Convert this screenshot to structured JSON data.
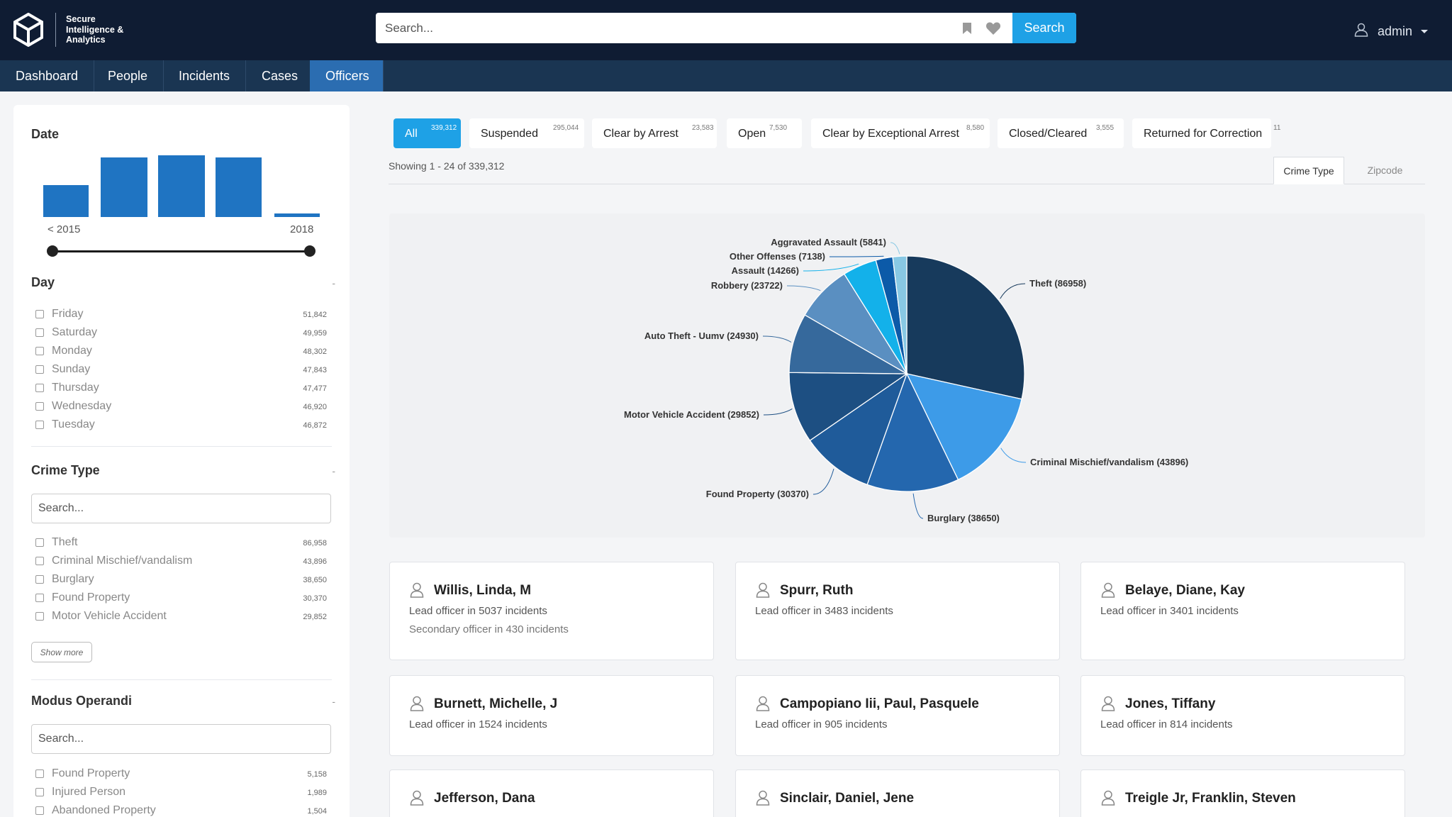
{
  "app": {
    "logo_text": [
      "Secure",
      "Intelligence &",
      "Analytics"
    ],
    "search_placeholder": "Search...",
    "search_button": "Search",
    "user": "admin"
  },
  "nav": {
    "items": [
      "Dashboard",
      "People",
      "Incidents",
      "Cases",
      "Officers"
    ],
    "active": "Officers"
  },
  "sidebar": {
    "date": {
      "title": "Date",
      "histogram_relative_heights": [
        0.52,
        0.96,
        1.0,
        0.96,
        0.06
      ],
      "label_start": "< 2015",
      "label_end": "2018"
    },
    "day": {
      "title": "Day",
      "collapse": "-",
      "items": [
        {
          "label": "Friday",
          "count": "51,842"
        },
        {
          "label": "Saturday",
          "count": "49,959"
        },
        {
          "label": "Monday",
          "count": "48,302"
        },
        {
          "label": "Sunday",
          "count": "47,843"
        },
        {
          "label": "Thursday",
          "count": "47,477"
        },
        {
          "label": "Wednesday",
          "count": "46,920"
        },
        {
          "label": "Tuesday",
          "count": "46,872"
        }
      ]
    },
    "crime_type": {
      "title": "Crime Type",
      "collapse": "-",
      "search_placeholder": "Search...",
      "items": [
        {
          "label": "Theft",
          "count": "86,958"
        },
        {
          "label": "Criminal Mischief/vandalism",
          "count": "43,896"
        },
        {
          "label": "Burglary",
          "count": "38,650"
        },
        {
          "label": "Found Property",
          "count": "30,370"
        },
        {
          "label": "Motor Vehicle Accident",
          "count": "29,852"
        }
      ],
      "show_more": "Show more"
    },
    "modus_operandi": {
      "title": "Modus Operandi",
      "collapse": "-",
      "search_placeholder": "Search...",
      "items": [
        {
          "label": "Found Property",
          "count": "5,158"
        },
        {
          "label": "Injured Person",
          "count": "1,989"
        },
        {
          "label": "Abandoned Property",
          "count": "1,504"
        }
      ]
    }
  },
  "status_filters": [
    {
      "label": "All",
      "count": "339,312",
      "active": true
    },
    {
      "label": "Suspended",
      "count": "295,044",
      "active": false
    },
    {
      "label": "Clear by Arrest",
      "count": "23,583",
      "active": false
    },
    {
      "label": "Open",
      "count": "7,530",
      "active": false
    },
    {
      "label": "Clear by Exceptional Arrest",
      "count": "8,580",
      "active": false
    },
    {
      "label": "Closed/Cleared",
      "count": "3,555",
      "active": false
    },
    {
      "label": "Returned for Correction",
      "count": "11",
      "active": false
    }
  ],
  "results": {
    "showing": "Showing 1 - 24 of 339,312"
  },
  "view_tabs": [
    {
      "label": "Crime Type",
      "active": true
    },
    {
      "label": "Zipcode",
      "active": false
    }
  ],
  "chart_data": {
    "type": "pie",
    "slices": [
      {
        "label": "Theft",
        "value": 86958,
        "color": "#173a5c"
      },
      {
        "label": "Criminal Mischief/vandalism",
        "value": 43896,
        "color": "#3d9be8"
      },
      {
        "label": "Burglary",
        "value": 38650,
        "color": "#2467ae"
      },
      {
        "label": "Found Property",
        "value": 30370,
        "color": "#1f5b9a"
      },
      {
        "label": "Motor Vehicle Accident",
        "value": 29852,
        "color": "#1d4f82"
      },
      {
        "label": "Auto Theft - Uumv",
        "value": 24930,
        "color": "#36699c"
      },
      {
        "label": "Robbery",
        "value": 23722,
        "color": "#5a8fc1"
      },
      {
        "label": "Assault",
        "value": 14266,
        "color": "#13b1ea"
      },
      {
        "label": "Other Offenses",
        "value": 7138,
        "color": "#0c5aa8"
      },
      {
        "label": "Aggravated Assault",
        "value": 5841,
        "color": "#88c8e4"
      }
    ],
    "label_text": [
      "Theft (86958)",
      "Criminal Mischief/vandalism (43896)",
      "Burglary (38650)",
      "Found Property (30370)",
      "Motor Vehicle Accident (29852)",
      "Auto Theft - Uumv (24930)",
      "Robbery (23722)",
      "Assault (14266)",
      "Other Offenses (7138)",
      "Aggravated Assault (5841)"
    ]
  },
  "officers": [
    {
      "name": "Willis, Linda, M",
      "line1": "Lead officer in 5037 incidents",
      "line2": "Secondary officer in 430 incidents"
    },
    {
      "name": "Spurr, Ruth",
      "line1": "Lead officer in 3483 incidents",
      "line2": ""
    },
    {
      "name": "Belaye, Diane, Kay",
      "line1": "Lead officer in 3401 incidents",
      "line2": ""
    },
    {
      "name": "Burnett, Michelle, J",
      "line1": "Lead officer in 1524 incidents",
      "line2": ""
    },
    {
      "name": "Campopiano Iii, Paul, Pasquele",
      "line1": "Lead officer in 905 incidents",
      "line2": ""
    },
    {
      "name": "Jones, Tiffany",
      "line1": "Lead officer in 814 incidents",
      "line2": ""
    },
    {
      "name": "Jefferson, Dana",
      "line1": "",
      "line2": ""
    },
    {
      "name": "Sinclair, Daniel, Jene",
      "line1": "",
      "line2": ""
    },
    {
      "name": "Treigle Jr, Franklin, Steven",
      "line1": "",
      "line2": ""
    }
  ]
}
